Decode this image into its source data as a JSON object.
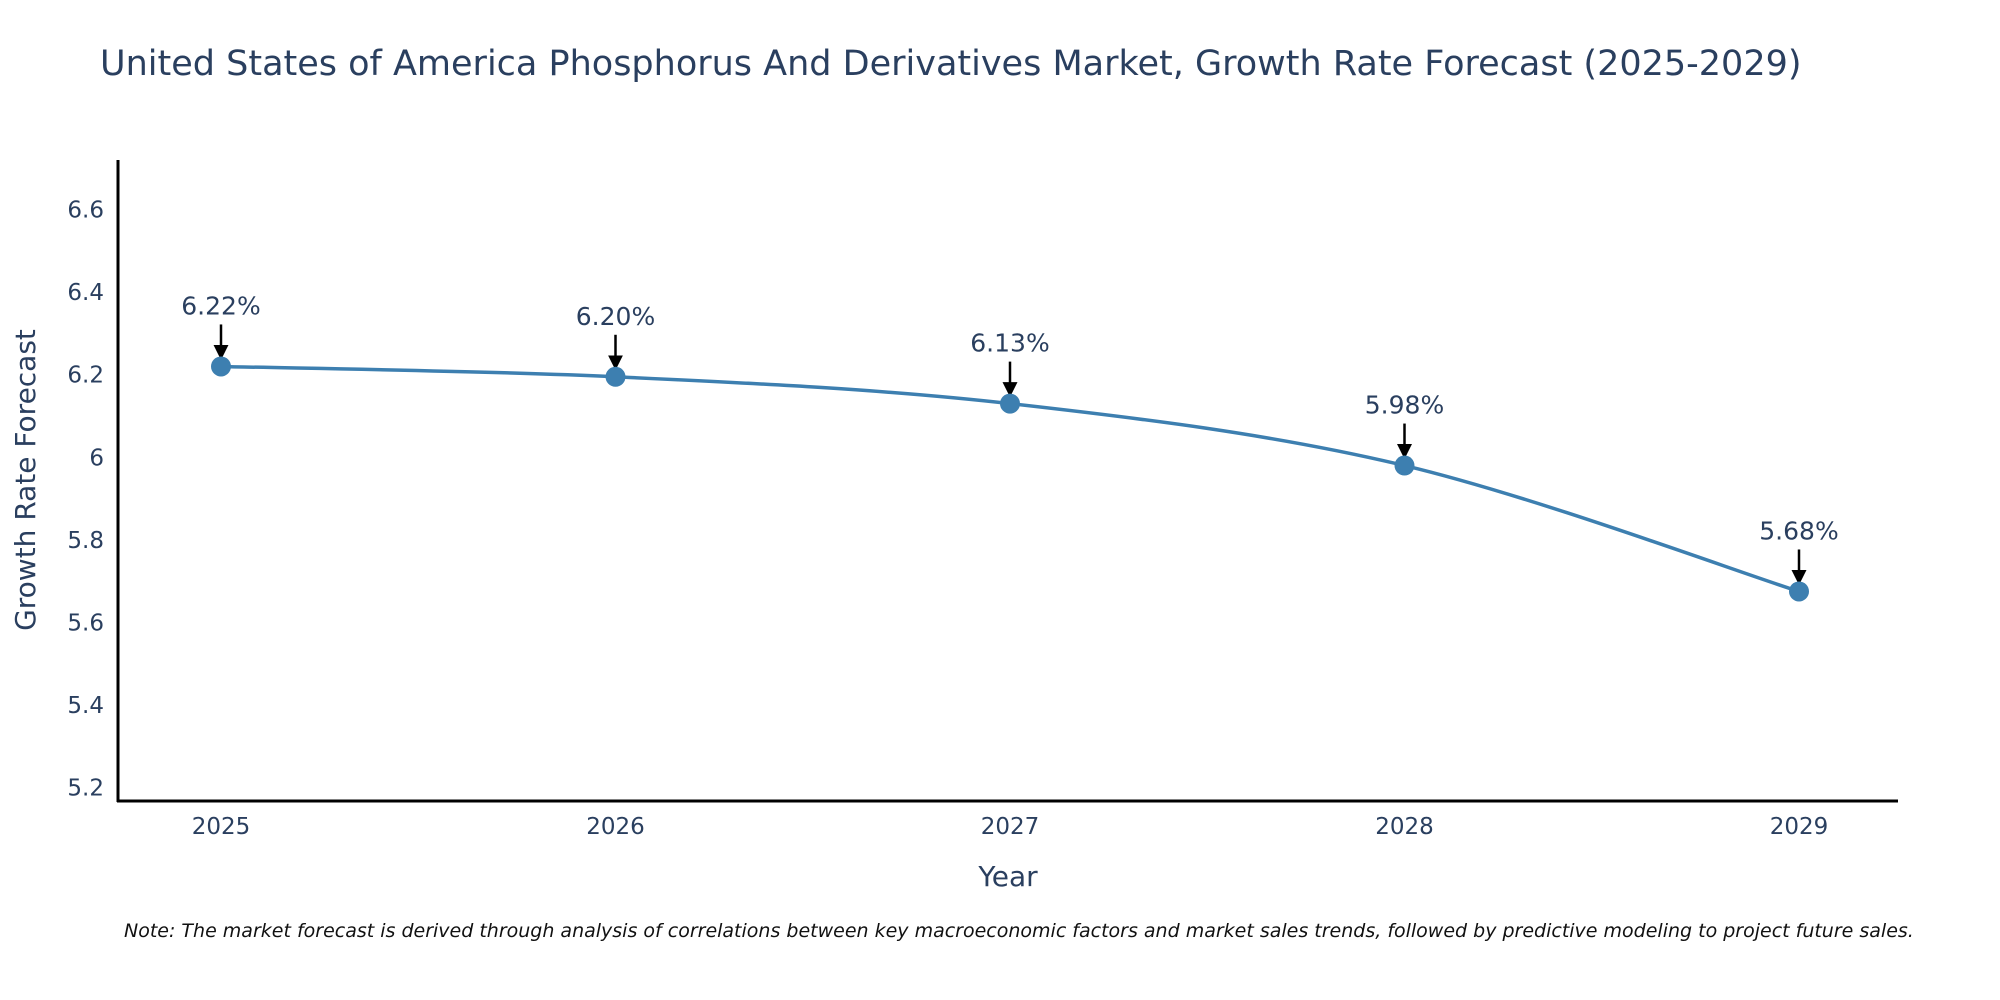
{
  "chart_data": {
    "type": "line",
    "title": "United States of America Phosphorus And Derivatives Market, Growth Rate Forecast (2025-2029)",
    "xlabel": "Year",
    "ylabel": "Growth Rate Forecast",
    "x": [
      "2025",
      "2026",
      "2027",
      "2028",
      "2029"
    ],
    "series": [
      {
        "name": "Growth Rate Forecast",
        "values": [
          6.22,
          6.195,
          6.13,
          5.98,
          5.675
        ],
        "labels": [
          "6.22%",
          "6.20%",
          "6.13%",
          "5.98%",
          "5.68%"
        ]
      }
    ],
    "yticks": [
      "5.2",
      "5.4",
      "5.6",
      "5.8",
      "6",
      "6.2",
      "6.4",
      "6.6"
    ],
    "ylim": [
      5.17,
      6.72
    ],
    "grid": false,
    "line_color": "#3d7fb0",
    "marker_color": "#3d7fb0",
    "arrow_color": "#000000",
    "note": "Note: The market forecast is derived through analysis of correlations between key macroeconomic factors and market sales trends, followed by predictive modeling to project future sales."
  }
}
